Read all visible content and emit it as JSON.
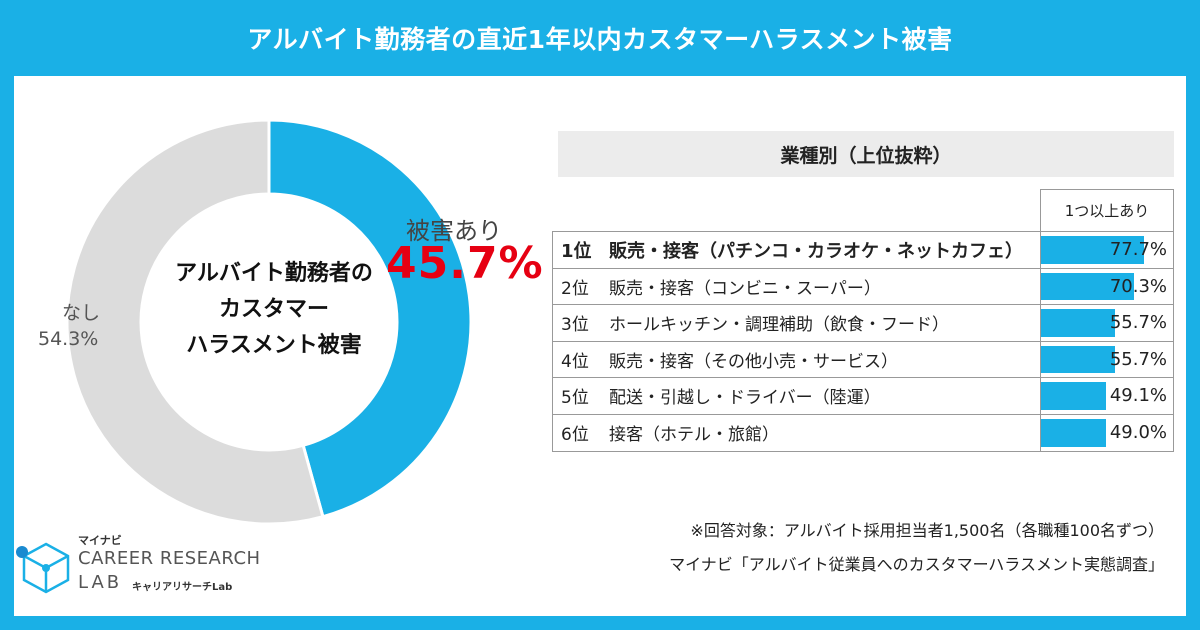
{
  "header": {
    "title": "アルバイト勤務者の直近1年以内カスタマーハラスメント被害"
  },
  "chart_data": [
    {
      "type": "pie",
      "center_label_lines": [
        "アルバイト勤務者の",
        "カスタマー",
        "ハラスメント被害"
      ],
      "slices": [
        {
          "name": "被害あり",
          "value": 45.7,
          "value_label": "45.7%",
          "color": "#1ab0e6"
        },
        {
          "name": "なし",
          "value": 54.3,
          "value_label": "54.3%",
          "color": "#dcdcdc"
        }
      ]
    },
    {
      "type": "table",
      "title": "業種別（上位抜粋）",
      "column_header": "1つ以上あり",
      "rows": [
        {
          "rank": "1位",
          "label": "販売・接客（パチンコ・カラオケ・ネットカフェ）",
          "value": 77.7,
          "value_label": "77.7%"
        },
        {
          "rank": "2位",
          "label": "販売・接客（コンビニ・スーパー）",
          "value": 70.3,
          "value_label": "70.3%"
        },
        {
          "rank": "3位",
          "label": "ホールキッチン・調理補助（飲食・フード）",
          "value": 55.7,
          "value_label": "55.7%"
        },
        {
          "rank": "4位",
          "label": "販売・接客（その他小売・サービス）",
          "value": 55.7,
          "value_label": "55.7%"
        },
        {
          "rank": "5位",
          "label": "配送・引越し・ドライバー（陸運）",
          "value": 49.1,
          "value_label": "49.1%"
        },
        {
          "rank": "6位",
          "label": "接客（ホテル・旅館）",
          "value": 49.0,
          "value_label": "49.0%"
        }
      ]
    }
  ],
  "notes": {
    "respondents": "※回答対象：アルバイト採用担当者1,500名（各職種100名ずつ）",
    "source": "マイナビ「アルバイト従業員へのカスタマーハラスメント実態調査」"
  },
  "logo": {
    "mynavi": "マイナビ",
    "line1": "CAREER RESEARCH",
    "line2": "LAB",
    "sub": "キャリアリサーチLab"
  },
  "colors": {
    "accent": "#1ab0e6",
    "highlight": "#e60012",
    "muted": "#dcdcdc"
  }
}
